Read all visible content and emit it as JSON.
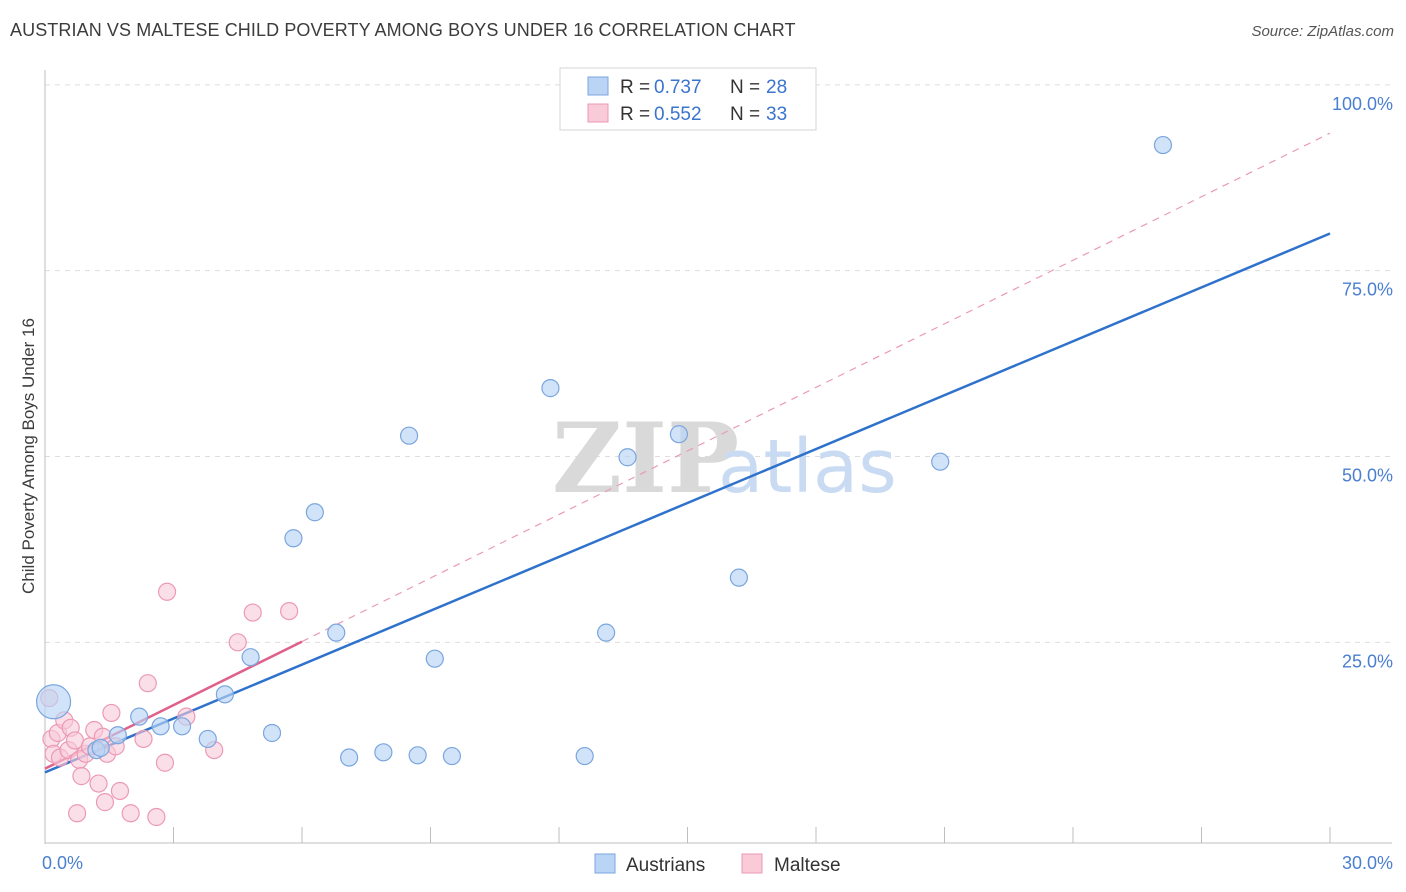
{
  "title": "AUSTRIAN VS MALTESE CHILD POVERTY AMONG BOYS UNDER 16 CORRELATION CHART",
  "source": "Source: ZipAtlas.com",
  "watermark": {
    "zip": "ZIP",
    "atlas": "atlas"
  },
  "colors": {
    "austrians_fill": "#b9d4f4",
    "austrians_stroke": "#7aa6de",
    "austrians_line": "#2f72cc",
    "maltese_fill": "#f9cad8",
    "maltese_stroke": "#ec9ab4",
    "maltese_line": "#e0608c",
    "axis_text": "#4a7fd0",
    "grid": "#dddddd"
  },
  "legend": {
    "rows": [
      {
        "r_label": "R =",
        "r_value": "0.737",
        "n_label": "N =",
        "n_value": "28"
      },
      {
        "r_label": "R =",
        "r_value": "0.552",
        "n_label": "N =",
        "n_value": "33"
      }
    ]
  },
  "chart_data": {
    "type": "scatter",
    "xlabel": "",
    "ylabel": "Child Poverty Among Boys Under 16",
    "xlim": [
      0,
      30
    ],
    "ylim": [
      -2,
      102
    ],
    "x_tick_labels": [
      "0.0%",
      "30.0%"
    ],
    "y_ticks": [
      25,
      50,
      75,
      100
    ],
    "y_tick_labels": [
      "25.0%",
      "50.0%",
      "75.0%",
      "100.0%"
    ],
    "series": [
      {
        "name": "Austrians",
        "r": 0.737,
        "n": 28,
        "trend": {
          "x0": 0,
          "y0": 7.5,
          "x1": 30,
          "y1": 80.0,
          "solid_to": 30
        },
        "points": [
          {
            "x": 0.2,
            "y": 17.0,
            "size": "large"
          },
          {
            "x": 1.2,
            "y": 10.5
          },
          {
            "x": 1.7,
            "y": 12.5
          },
          {
            "x": 2.2,
            "y": 15.0
          },
          {
            "x": 2.7,
            "y": 13.7
          },
          {
            "x": 3.2,
            "y": 13.7
          },
          {
            "x": 3.8,
            "y": 12.0
          },
          {
            "x": 4.2,
            "y": 18.0
          },
          {
            "x": 4.8,
            "y": 23.0
          },
          {
            "x": 5.3,
            "y": 12.8
          },
          {
            "x": 5.8,
            "y": 39.0
          },
          {
            "x": 6.3,
            "y": 42.5
          },
          {
            "x": 6.8,
            "y": 26.3
          },
          {
            "x": 7.1,
            "y": 9.5
          },
          {
            "x": 7.9,
            "y": 10.2
          },
          {
            "x": 8.5,
            "y": 52.8
          },
          {
            "x": 8.7,
            "y": 9.8
          },
          {
            "x": 9.1,
            "y": 22.8
          },
          {
            "x": 9.5,
            "y": 9.7
          },
          {
            "x": 11.8,
            "y": 59.2
          },
          {
            "x": 12.6,
            "y": 9.7
          },
          {
            "x": 13.1,
            "y": 26.3
          },
          {
            "x": 13.6,
            "y": 49.9
          },
          {
            "x": 14.8,
            "y": 53.0
          },
          {
            "x": 16.2,
            "y": 33.7
          },
          {
            "x": 20.9,
            "y": 49.3
          },
          {
            "x": 26.1,
            "y": 91.9
          },
          {
            "x": 1.3,
            "y": 10.8
          }
        ]
      },
      {
        "name": "Maltese",
        "r": 0.552,
        "n": 33,
        "trend": {
          "x0": 0,
          "y0": 8.0,
          "x1": 30,
          "y1": 93.5,
          "solid_to": 6.0
        },
        "points": [
          {
            "x": 0.1,
            "y": 17.5
          },
          {
            "x": 0.15,
            "y": 12.0
          },
          {
            "x": 0.2,
            "y": 10.0
          },
          {
            "x": 0.3,
            "y": 12.8
          },
          {
            "x": 0.35,
            "y": 9.5
          },
          {
            "x": 0.45,
            "y": 14.5
          },
          {
            "x": 0.55,
            "y": 10.5
          },
          {
            "x": 0.6,
            "y": 13.5
          },
          {
            "x": 0.7,
            "y": 11.8
          },
          {
            "x": 0.8,
            "y": 9.2
          },
          {
            "x": 0.85,
            "y": 7.0
          },
          {
            "x": 0.95,
            "y": 10.0
          },
          {
            "x": 1.05,
            "y": 11.0
          },
          {
            "x": 1.15,
            "y": 13.2
          },
          {
            "x": 1.25,
            "y": 6.0
          },
          {
            "x": 1.35,
            "y": 12.3
          },
          {
            "x": 1.45,
            "y": 10.0
          },
          {
            "x": 1.55,
            "y": 15.5
          },
          {
            "x": 1.65,
            "y": 11.0
          },
          {
            "x": 1.75,
            "y": 5.0
          },
          {
            "x": 1.4,
            "y": 3.5
          },
          {
            "x": 2.0,
            "y": 2.0
          },
          {
            "x": 2.3,
            "y": 12.0
          },
          {
            "x": 2.4,
            "y": 19.5
          },
          {
            "x": 2.6,
            "y": 1.5
          },
          {
            "x": 2.8,
            "y": 8.8
          },
          {
            "x": 2.85,
            "y": 31.8
          },
          {
            "x": 3.3,
            "y": 15.0
          },
          {
            "x": 3.95,
            "y": 10.5
          },
          {
            "x": 4.5,
            "y": 25.0
          },
          {
            "x": 4.85,
            "y": 29.0
          },
          {
            "x": 5.7,
            "y": 29.2
          },
          {
            "x": 0.75,
            "y": 2.0
          }
        ]
      }
    ]
  },
  "bottom_legend": {
    "items": [
      {
        "label": "Austrians"
      },
      {
        "label": "Maltese"
      }
    ]
  }
}
